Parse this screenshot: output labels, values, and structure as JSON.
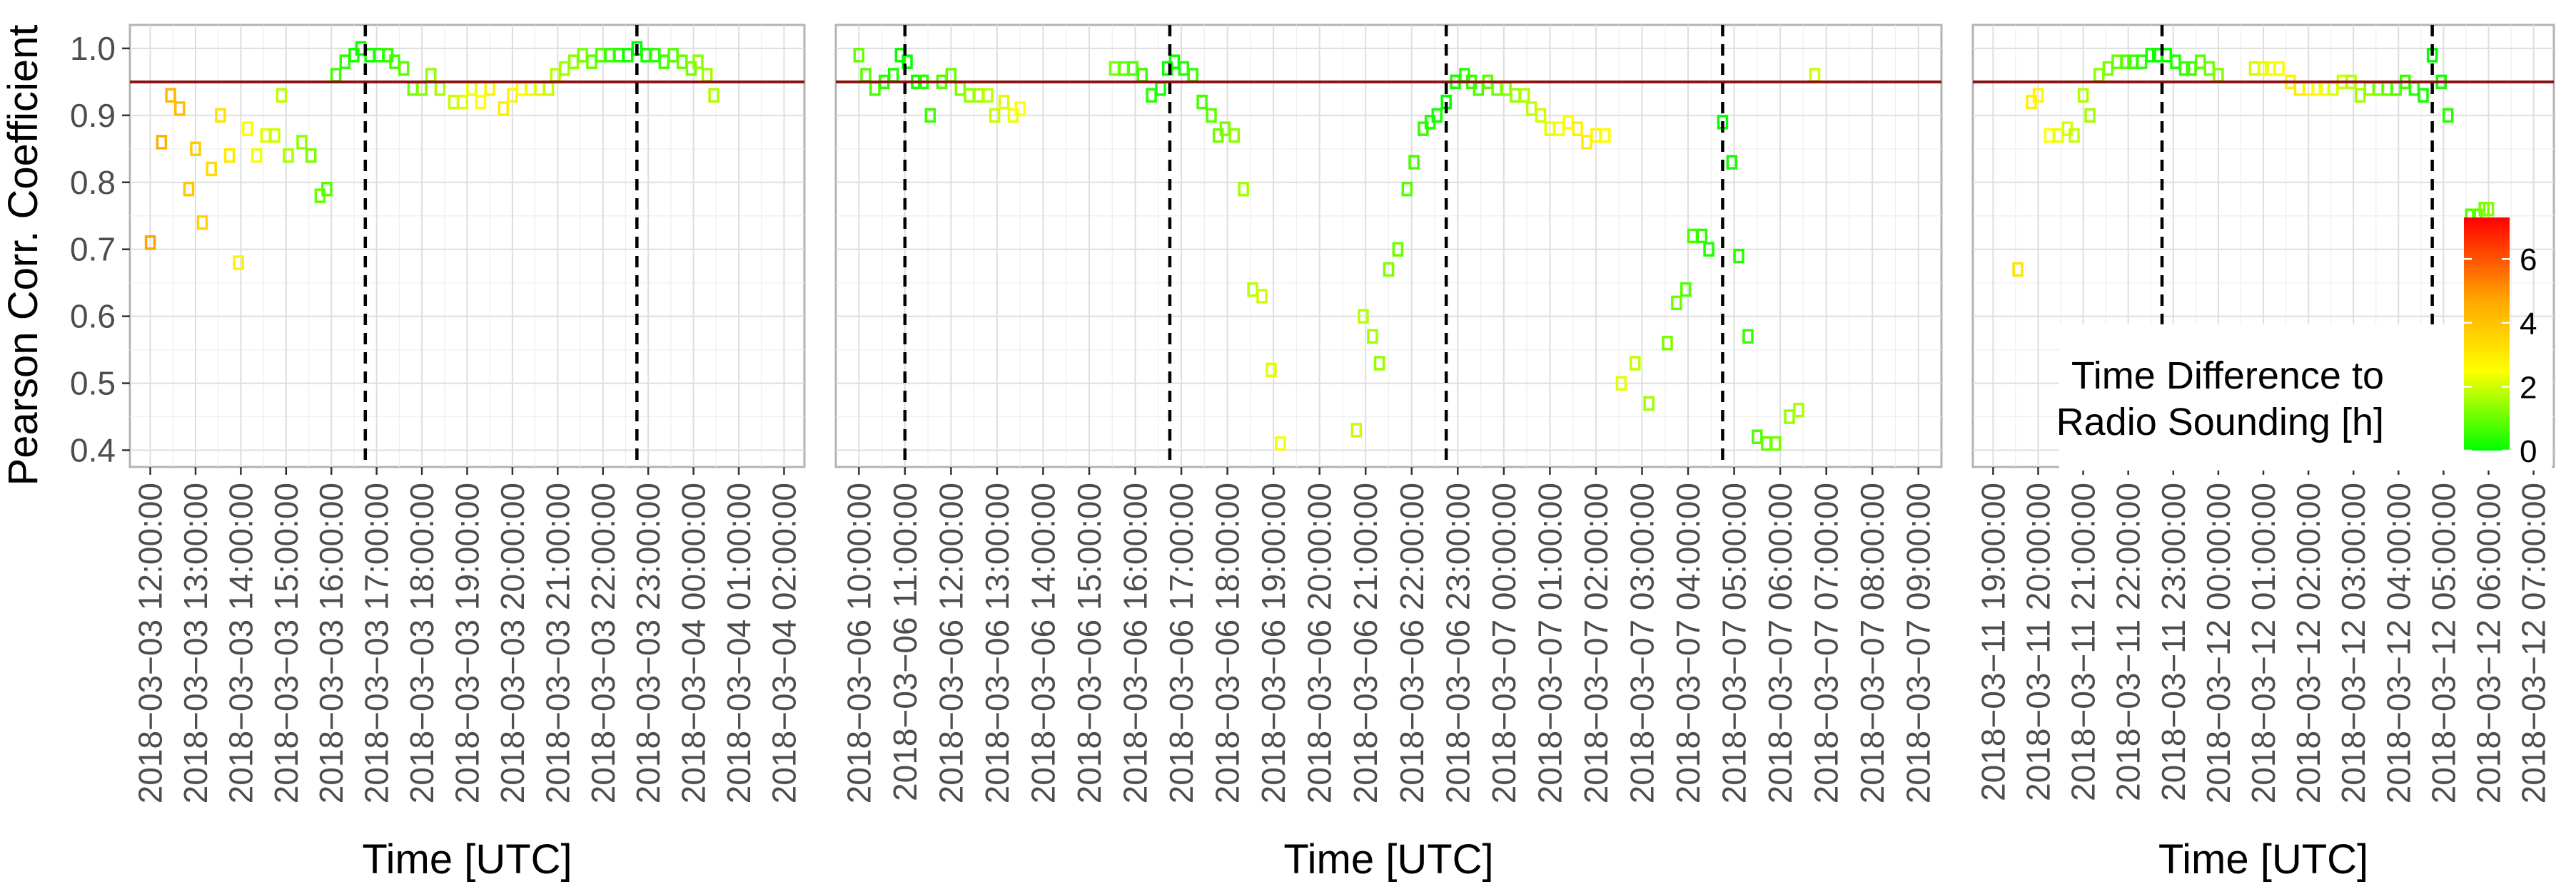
{
  "chart_data": {
    "type": "scatter",
    "ylabel": "Pearson Corr. Coefficient",
    "xlabel": "Time [UTC]",
    "ylim": [
      0.375,
      1.035
    ],
    "y_ticks": [
      0.4,
      0.5,
      0.6,
      0.7,
      0.8,
      0.9,
      1.0
    ],
    "y_tick_labels": [
      "0.4",
      "0.5",
      "0.6",
      "0.7",
      "0.8",
      "0.9",
      "1.0"
    ],
    "reference_line": 0.95,
    "reference_line_color": "#8b1010",
    "grid": true,
    "legend": {
      "title_lines": [
        "Time Difference to",
        "Radio Sounding [h]"
      ],
      "ticks": [
        0,
        2,
        4,
        6
      ],
      "range": [
        0,
        7.3
      ],
      "colors": [
        "#00ff00",
        "#ffff00",
        "#ff0000"
      ],
      "placement": "bottom-right"
    },
    "panels": [
      {
        "x_labels": [
          "2018−03−03 12:00:00",
          "2018−03−03 13:00:00",
          "2018−03−03 14:00:00",
          "2018−03−03 15:00:00",
          "2018−03−03 16:00:00",
          "2018−03−03 17:00:00",
          "2018−03−03 18:00:00",
          "2018−03−03 19:00:00",
          "2018−03−03 20:00:00",
          "2018−03−03 21:00:00",
          "2018−03−03 22:00:00",
          "2018−03−03 23:00:00",
          "2018−03−04 00:00:00",
          "2018−03−04 01:00:00",
          "2018−03−04 02:00:00"
        ],
        "xlim": [
          -0.45,
          14.45
        ],
        "soundings": [
          4.75,
          10.75
        ],
        "points": [
          [
            0.0,
            0.71
          ],
          [
            0.25,
            0.86
          ],
          [
            0.45,
            0.93
          ],
          [
            0.65,
            0.91
          ],
          [
            0.85,
            0.79
          ],
          [
            1.0,
            0.85
          ],
          [
            1.15,
            0.74
          ],
          [
            1.35,
            0.82
          ],
          [
            1.55,
            0.9
          ],
          [
            1.75,
            0.84
          ],
          [
            1.95,
            0.68
          ],
          [
            2.15,
            0.88
          ],
          [
            2.35,
            0.84
          ],
          [
            2.55,
            0.87
          ],
          [
            2.75,
            0.87
          ],
          [
            2.9,
            0.93
          ],
          [
            3.05,
            0.84
          ],
          [
            3.35,
            0.86
          ],
          [
            3.55,
            0.84
          ],
          [
            3.75,
            0.78
          ],
          [
            3.9,
            0.79
          ],
          [
            4.1,
            0.96
          ],
          [
            4.3,
            0.98
          ],
          [
            4.5,
            0.99
          ],
          [
            4.65,
            1.0
          ],
          [
            4.85,
            0.99
          ],
          [
            5.05,
            0.99
          ],
          [
            5.25,
            0.99
          ],
          [
            5.4,
            0.98
          ],
          [
            5.6,
            0.97
          ],
          [
            5.8,
            0.94
          ],
          [
            6.0,
            0.94
          ],
          [
            6.2,
            0.96
          ],
          [
            6.4,
            0.94
          ],
          [
            6.7,
            0.92
          ],
          [
            6.9,
            0.92
          ],
          [
            7.1,
            0.94
          ],
          [
            7.3,
            0.92
          ],
          [
            7.5,
            0.94
          ],
          [
            7.8,
            0.91
          ],
          [
            8.0,
            0.93
          ],
          [
            8.2,
            0.94
          ],
          [
            8.4,
            0.94
          ],
          [
            8.6,
            0.94
          ],
          [
            8.8,
            0.94
          ],
          [
            8.95,
            0.96
          ],
          [
            9.15,
            0.97
          ],
          [
            9.35,
            0.98
          ],
          [
            9.55,
            0.99
          ],
          [
            9.75,
            0.98
          ],
          [
            9.95,
            0.99
          ],
          [
            10.15,
            0.99
          ],
          [
            10.35,
            0.99
          ],
          [
            10.55,
            0.99
          ],
          [
            10.75,
            1.0
          ],
          [
            10.95,
            0.99
          ],
          [
            11.15,
            0.99
          ],
          [
            11.35,
            0.98
          ],
          [
            11.55,
            0.99
          ],
          [
            11.75,
            0.98
          ],
          [
            11.95,
            0.97
          ],
          [
            12.1,
            0.98
          ],
          [
            12.3,
            0.96
          ],
          [
            12.45,
            0.93
          ]
        ]
      },
      {
        "x_labels": [
          "2018−03−06 10:00:00",
          "2018−03−06 11:00:00",
          "2018−03−06 12:00:00",
          "2018−03−06 13:00:00",
          "2018−03−06 14:00:00",
          "2018−03−06 15:00:00",
          "2018−03−06 16:00:00",
          "2018−03−06 17:00:00",
          "2018−03−06 18:00:00",
          "2018−03−06 19:00:00",
          "2018−03−06 20:00:00",
          "2018−03−06 21:00:00",
          "2018−03−06 22:00:00",
          "2018−03−06 23:00:00",
          "2018−03−07 00:00:00",
          "2018−03−07 01:00:00",
          "2018−03−07 02:00:00",
          "2018−03−07 03:00:00",
          "2018−03−07 04:00:00",
          "2018−03−07 05:00:00",
          "2018−03−07 06:00:00",
          "2018−03−07 07:00:00",
          "2018−03−07 08:00:00",
          "2018−03−07 09:00:00"
        ],
        "xlim": [
          -0.5,
          23.5
        ],
        "soundings": [
          1.0,
          6.75,
          12.75,
          18.75
        ],
        "points": [
          [
            0.0,
            0.99
          ],
          [
            0.15,
            0.96
          ],
          [
            0.35,
            0.94
          ],
          [
            0.55,
            0.95
          ],
          [
            0.75,
            0.96
          ],
          [
            0.9,
            0.99
          ],
          [
            1.05,
            0.98
          ],
          [
            1.25,
            0.95
          ],
          [
            1.4,
            0.95
          ],
          [
            1.55,
            0.9
          ],
          [
            1.8,
            0.95
          ],
          [
            2.0,
            0.96
          ],
          [
            2.2,
            0.94
          ],
          [
            2.4,
            0.93
          ],
          [
            2.6,
            0.93
          ],
          [
            2.8,
            0.93
          ],
          [
            2.95,
            0.9
          ],
          [
            3.15,
            0.92
          ],
          [
            3.35,
            0.9
          ],
          [
            3.5,
            0.91
          ],
          [
            5.55,
            0.97
          ],
          [
            5.75,
            0.97
          ],
          [
            5.95,
            0.97
          ],
          [
            6.15,
            0.96
          ],
          [
            6.35,
            0.93
          ],
          [
            6.55,
            0.94
          ],
          [
            6.7,
            0.97
          ],
          [
            6.85,
            0.98
          ],
          [
            7.05,
            0.97
          ],
          [
            7.25,
            0.96
          ],
          [
            7.45,
            0.92
          ],
          [
            7.65,
            0.9
          ],
          [
            7.8,
            0.87
          ],
          [
            7.95,
            0.88
          ],
          [
            8.15,
            0.87
          ],
          [
            8.35,
            0.79
          ],
          [
            8.55,
            0.64
          ],
          [
            8.75,
            0.63
          ],
          [
            8.95,
            0.52
          ],
          [
            9.15,
            0.41
          ],
          [
            10.8,
            0.43
          ],
          [
            10.95,
            0.6
          ],
          [
            11.15,
            0.57
          ],
          [
            11.3,
            0.53
          ],
          [
            11.5,
            0.67
          ],
          [
            11.7,
            0.7
          ],
          [
            11.9,
            0.79
          ],
          [
            12.05,
            0.83
          ],
          [
            12.25,
            0.88
          ],
          [
            12.4,
            0.89
          ],
          [
            12.55,
            0.9
          ],
          [
            12.75,
            0.92
          ],
          [
            12.95,
            0.95
          ],
          [
            13.15,
            0.96
          ],
          [
            13.3,
            0.95
          ],
          [
            13.45,
            0.94
          ],
          [
            13.65,
            0.95
          ],
          [
            13.85,
            0.94
          ],
          [
            14.05,
            0.94
          ],
          [
            14.25,
            0.93
          ],
          [
            14.45,
            0.93
          ],
          [
            14.6,
            0.91
          ],
          [
            14.8,
            0.9
          ],
          [
            15.0,
            0.88
          ],
          [
            15.2,
            0.88
          ],
          [
            15.4,
            0.89
          ],
          [
            15.6,
            0.88
          ],
          [
            15.8,
            0.86
          ],
          [
            16.0,
            0.87
          ],
          [
            16.2,
            0.87
          ],
          [
            16.55,
            0.5
          ],
          [
            16.85,
            0.53
          ],
          [
            17.15,
            0.47
          ],
          [
            17.55,
            0.56
          ],
          [
            17.75,
            0.62
          ],
          [
            17.95,
            0.64
          ],
          [
            18.1,
            0.72
          ],
          [
            18.3,
            0.72
          ],
          [
            18.45,
            0.7
          ],
          [
            18.75,
            0.89
          ],
          [
            18.95,
            0.83
          ],
          [
            19.1,
            0.69
          ],
          [
            19.3,
            0.57
          ],
          [
            19.5,
            0.42
          ],
          [
            19.7,
            0.41
          ],
          [
            19.9,
            0.41
          ],
          [
            20.2,
            0.45
          ],
          [
            20.4,
            0.46
          ],
          [
            20.75,
            0.96
          ]
        ]
      },
      {
        "x_labels": [
          "2018−03−11 19:00:00",
          "2018−03−11 20:00:00",
          "2018−03−11 21:00:00",
          "2018−03−11 22:00:00",
          "2018−03−11 23:00:00",
          "2018−03−12 00:00:00",
          "2018−03−12 01:00:00",
          "2018−03−12 02:00:00",
          "2018−03−12 03:00:00",
          "2018−03−12 04:00:00",
          "2018−03−12 05:00:00",
          "2018−03−12 06:00:00",
          "2018−03−12 07:00:00"
        ],
        "xlim": [
          -0.45,
          12.45
        ],
        "soundings": [
          3.75,
          9.75
        ],
        "points": [
          [
            0.55,
            0.67
          ],
          [
            0.85,
            0.92
          ],
          [
            1.0,
            0.93
          ],
          [
            1.25,
            0.87
          ],
          [
            1.45,
            0.87
          ],
          [
            1.65,
            0.88
          ],
          [
            1.8,
            0.87
          ],
          [
            2.0,
            0.93
          ],
          [
            2.15,
            0.9
          ],
          [
            2.35,
            0.96
          ],
          [
            2.55,
            0.97
          ],
          [
            2.75,
            0.98
          ],
          [
            2.95,
            0.98
          ],
          [
            3.1,
            0.98
          ],
          [
            3.3,
            0.98
          ],
          [
            3.5,
            0.99
          ],
          [
            3.65,
            0.99
          ],
          [
            3.85,
            0.99
          ],
          [
            4.05,
            0.98
          ],
          [
            4.25,
            0.97
          ],
          [
            4.4,
            0.97
          ],
          [
            4.6,
            0.98
          ],
          [
            4.8,
            0.97
          ],
          [
            5.0,
            0.96
          ],
          [
            5.8,
            0.97
          ],
          [
            6.0,
            0.97
          ],
          [
            6.15,
            0.97
          ],
          [
            6.35,
            0.97
          ],
          [
            6.6,
            0.95
          ],
          [
            6.8,
            0.94
          ],
          [
            7.0,
            0.94
          ],
          [
            7.2,
            0.94
          ],
          [
            7.35,
            0.94
          ],
          [
            7.55,
            0.94
          ],
          [
            7.75,
            0.95
          ],
          [
            7.95,
            0.95
          ],
          [
            8.15,
            0.93
          ],
          [
            8.35,
            0.94
          ],
          [
            8.55,
            0.94
          ],
          [
            8.75,
            0.94
          ],
          [
            8.95,
            0.94
          ],
          [
            9.15,
            0.95
          ],
          [
            9.35,
            0.94
          ],
          [
            9.55,
            0.93
          ],
          [
            9.75,
            0.99
          ],
          [
            9.95,
            0.95
          ],
          [
            10.1,
            0.9
          ],
          [
            10.6,
            0.75
          ],
          [
            10.75,
            0.75
          ],
          [
            10.9,
            0.76
          ],
          [
            11.0,
            0.76
          ]
        ]
      }
    ]
  }
}
